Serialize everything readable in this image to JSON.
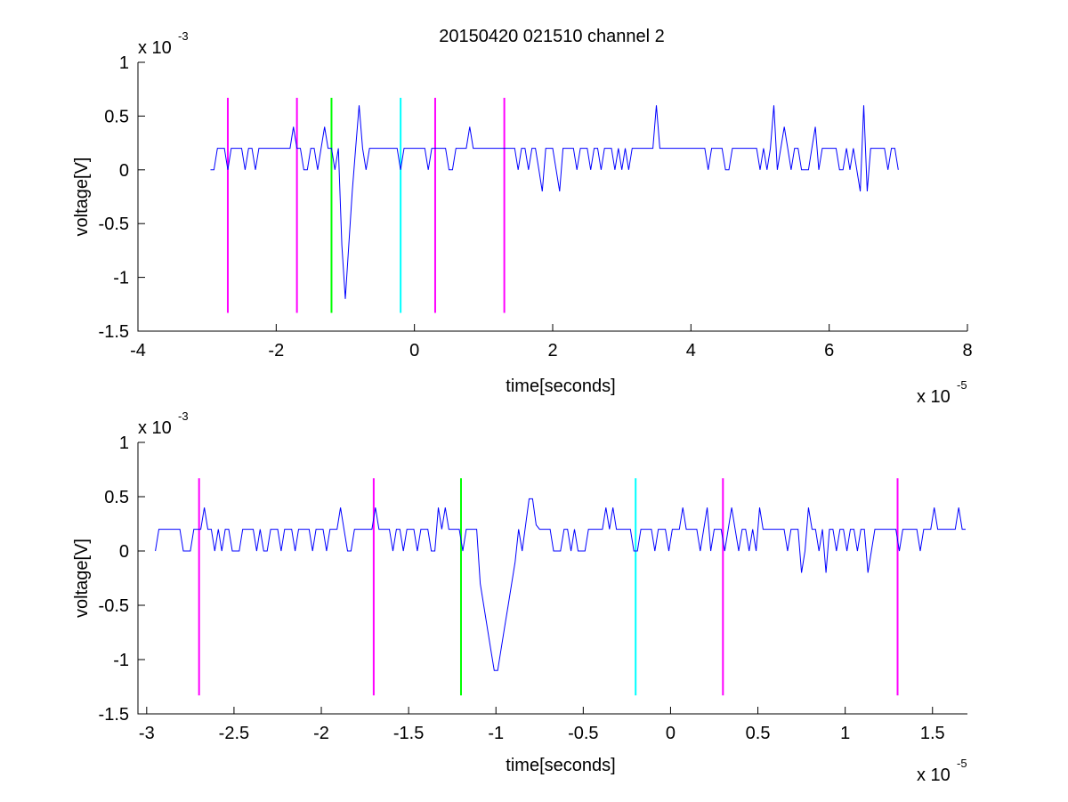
{
  "figure": {
    "title": "20150420 021510 channel 2"
  },
  "chart_data": [
    {
      "type": "line",
      "title": "20150420 021510 channel 2",
      "xlabel": "time[seconds]",
      "ylabel": "voltage[V]",
      "x_multiplier": "x 10",
      "x_exponent": "-5",
      "y_multiplier": "x 10",
      "y_exponent": "-3",
      "xlim": [
        -4,
        8
      ],
      "ylim": [
        -1.5,
        1
      ],
      "x_ticks": [
        -4,
        -2,
        0,
        2,
        4,
        6,
        8
      ],
      "x_tick_labels": [
        "-4",
        "-2",
        "0",
        "2",
        "4",
        "6",
        "8"
      ],
      "y_ticks": [
        -1.5,
        -1,
        -0.5,
        0,
        0.5,
        1
      ],
      "y_tick_labels": [
        "-1.5",
        "-1",
        "-0.5",
        "0",
        "0.5",
        "1"
      ],
      "grid": false,
      "signal_color": "#0000ff",
      "signal_x_range": [
        -2.95,
        7.0
      ],
      "signal_features": [
        {
          "x": -1.0,
          "y": -1.2
        },
        {
          "x": -0.8,
          "y": 0.6
        },
        {
          "x": 3.5,
          "y": 0.6
        },
        {
          "x": 5.2,
          "y": 0.6
        },
        {
          "x": 6.5,
          "y": 0.6
        }
      ],
      "markers": [
        {
          "x": -2.7,
          "ymin": -1.33,
          "ymax": 0.67,
          "color": "#ff00ff"
        },
        {
          "x": -1.7,
          "ymin": -1.33,
          "ymax": 0.67,
          "color": "#ff00ff"
        },
        {
          "x": -1.2,
          "ymin": -1.33,
          "ymax": 0.67,
          "color": "#00ff00"
        },
        {
          "x": -0.2,
          "ymin": -1.33,
          "ymax": 0.67,
          "color": "#00ffff"
        },
        {
          "x": 0.3,
          "ymin": -1.33,
          "ymax": 0.67,
          "color": "#ff00ff"
        },
        {
          "x": 1.3,
          "ymin": -1.33,
          "ymax": 0.67,
          "color": "#ff00ff"
        }
      ]
    },
    {
      "type": "line",
      "title": "",
      "xlabel": "time[seconds]",
      "ylabel": "voltage[V]",
      "x_multiplier": "x 10",
      "x_exponent": "-5",
      "y_multiplier": "x 10",
      "y_exponent": "-3",
      "xlim": [
        -3.05,
        1.7
      ],
      "ylim": [
        -1.5,
        1
      ],
      "x_ticks": [
        -3,
        -2.5,
        -2,
        -1.5,
        -1,
        -0.5,
        0,
        0.5,
        1,
        1.5
      ],
      "x_tick_labels": [
        "-3",
        "-2.5",
        "-2",
        "-1.5",
        "-1",
        "-0.5",
        "0",
        "0.5",
        "1",
        "1.5"
      ],
      "y_ticks": [
        -1.5,
        -1,
        -0.5,
        0,
        0.5,
        1
      ],
      "y_tick_labels": [
        "-1.5",
        "-1",
        "-0.5",
        "0",
        "0.5",
        "1"
      ],
      "grid": false,
      "signal_color": "#0000ff",
      "signal_x_range": [
        -2.95,
        1.7
      ],
      "signal_features": [
        {
          "x": -1.0,
          "y": -1.2
        },
        {
          "x": -0.8,
          "y": 0.6
        }
      ],
      "markers": [
        {
          "x": -2.7,
          "ymin": -1.33,
          "ymax": 0.67,
          "color": "#ff00ff"
        },
        {
          "x": -1.7,
          "ymin": -1.33,
          "ymax": 0.67,
          "color": "#ff00ff"
        },
        {
          "x": -1.2,
          "ymin": -1.33,
          "ymax": 0.67,
          "color": "#00ff00"
        },
        {
          "x": -0.2,
          "ymin": -1.33,
          "ymax": 0.67,
          "color": "#00ffff"
        },
        {
          "x": 0.3,
          "ymin": -1.33,
          "ymax": 0.67,
          "color": "#ff00ff"
        },
        {
          "x": 1.3,
          "ymin": -1.33,
          "ymax": 0.67,
          "color": "#ff00ff"
        }
      ]
    }
  ]
}
